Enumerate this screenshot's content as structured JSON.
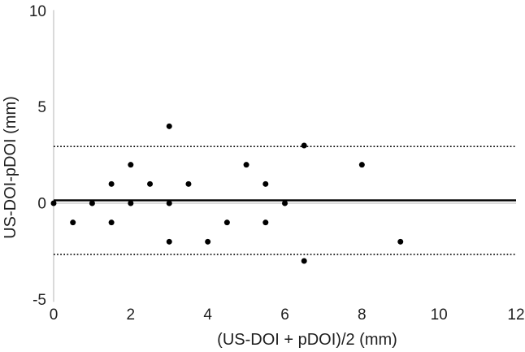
{
  "chart_data": {
    "type": "scatter",
    "title": "",
    "xlabel": "(US-DOI + pDOI)/2 (mm)",
    "ylabel": "US-DOI-pDOI (mm)",
    "xlim": [
      0,
      12
    ],
    "ylim": [
      -5,
      10
    ],
    "x_ticks": [
      0,
      2,
      4,
      6,
      8,
      10,
      12
    ],
    "y_ticks": [
      10,
      5,
      0,
      -5
    ],
    "points": [
      [
        0,
        0
      ],
      [
        0.5,
        -1
      ],
      [
        1,
        0
      ],
      [
        1.5,
        1
      ],
      [
        1.5,
        -1
      ],
      [
        2,
        2
      ],
      [
        2,
        0
      ],
      [
        2.5,
        1
      ],
      [
        3,
        4
      ],
      [
        3,
        0
      ],
      [
        3,
        -2
      ],
      [
        3.5,
        1
      ],
      [
        4,
        -2
      ],
      [
        4.5,
        -1
      ],
      [
        5,
        2
      ],
      [
        5.5,
        1
      ],
      [
        5.5,
        -1
      ],
      [
        6,
        0
      ],
      [
        6.5,
        3
      ],
      [
        6.5,
        -3
      ],
      [
        8,
        2
      ],
      [
        9,
        -2
      ]
    ],
    "mean_line_value": 0.15,
    "upper_loa_value": 2.95,
    "lower_loa_value": -2.66,
    "grid": false,
    "legend": "none",
    "colors": {
      "points": "#000000",
      "mean_line": "#000000",
      "loa_lines": "#000000",
      "axis_line": "#c6c6c6",
      "text": "#1f1f1f",
      "background": "#ffffff"
    }
  }
}
